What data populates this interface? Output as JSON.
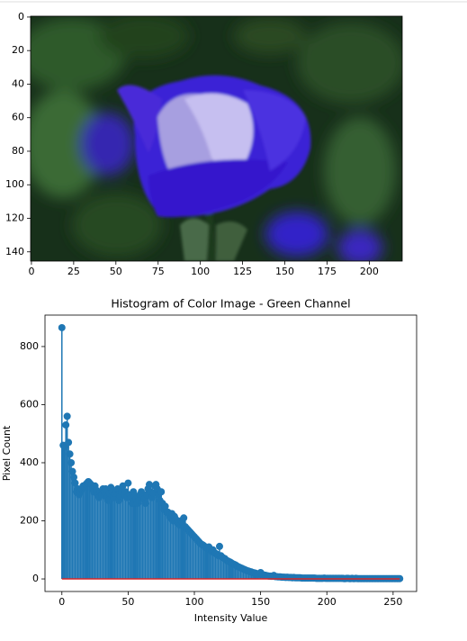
{
  "chart_data": [
    {
      "type": "image",
      "xlim": [
        -0.5,
        219.5
      ],
      "ylim": [
        145.5,
        -0.5
      ],
      "xticks": [
        0,
        25,
        50,
        75,
        100,
        125,
        150,
        175,
        200
      ],
      "yticks": [
        0,
        20,
        40,
        60,
        80,
        100,
        120,
        140
      ]
    },
    {
      "type": "stem",
      "title": "Histogram of Color Image - Green Channel",
      "xlabel": "Intensity Value",
      "ylabel": "Pixel Count",
      "color": "#1f77b4",
      "baseline_color": "#d62728",
      "xlim": [
        -12.75,
        267.75
      ],
      "ylim": [
        -43.25,
        908.25
      ],
      "xticks": [
        0,
        50,
        100,
        150,
        200,
        250
      ],
      "yticks": [
        0,
        200,
        400,
        600,
        800
      ],
      "x": [
        0,
        1,
        2,
        3,
        4,
        5,
        6,
        7,
        8,
        9,
        10,
        11,
        12,
        13,
        14,
        15,
        16,
        17,
        18,
        19,
        20,
        21,
        22,
        23,
        24,
        25,
        26,
        27,
        28,
        29,
        30,
        31,
        32,
        33,
        34,
        35,
        36,
        37,
        38,
        39,
        40,
        41,
        42,
        43,
        44,
        45,
        46,
        47,
        48,
        49,
        50,
        51,
        52,
        53,
        54,
        55,
        56,
        57,
        58,
        59,
        60,
        61,
        62,
        63,
        64,
        65,
        66,
        67,
        68,
        69,
        70,
        71,
        72,
        73,
        74,
        75,
        76,
        77,
        78,
        79,
        80,
        81,
        82,
        83,
        84,
        85,
        86,
        87,
        88,
        89,
        90,
        91,
        92,
        93,
        94,
        95,
        96,
        97,
        98,
        99,
        100,
        101,
        102,
        103,
        104,
        105,
        106,
        107,
        108,
        109,
        110,
        111,
        112,
        113,
        114,
        115,
        116,
        117,
        118,
        119,
        120,
        121,
        122,
        123,
        124,
        125,
        126,
        127,
        128,
        129,
        130,
        131,
        132,
        133,
        134,
        135,
        136,
        137,
        138,
        139,
        140,
        141,
        142,
        143,
        144,
        145,
        146,
        147,
        148,
        149,
        150,
        151,
        152,
        153,
        154,
        155,
        156,
        157,
        158,
        159,
        160,
        161,
        162,
        163,
        164,
        165,
        166,
        167,
        168,
        169,
        170,
        171,
        172,
        173,
        174,
        175,
        176,
        177,
        178,
        179,
        180,
        181,
        182,
        183,
        184,
        185,
        186,
        187,
        188,
        189,
        190,
        191,
        192,
        193,
        194,
        195,
        196,
        197,
        198,
        199,
        200,
        201,
        202,
        203,
        204,
        205,
        206,
        207,
        208,
        209,
        210,
        211,
        212,
        213,
        214,
        215,
        216,
        217,
        218,
        219,
        220,
        221,
        222,
        223,
        224,
        225,
        226,
        227,
        228,
        229,
        230,
        231,
        232,
        233,
        234,
        235,
        236,
        237,
        238,
        239,
        240,
        241,
        242,
        243,
        244,
        245,
        246,
        247,
        248,
        249,
        250,
        251,
        252,
        253,
        254,
        255
      ],
      "values": [
        865,
        460,
        455,
        530,
        560,
        470,
        430,
        400,
        370,
        350,
        330,
        300,
        310,
        290,
        300,
        310,
        320,
        315,
        325,
        330,
        335,
        330,
        325,
        310,
        300,
        320,
        305,
        290,
        280,
        300,
        290,
        310,
        300,
        310,
        280,
        270,
        295,
        315,
        300,
        280,
        295,
        300,
        310,
        270,
        285,
        300,
        320,
        290,
        300,
        280,
        330,
        290,
        280,
        260,
        300,
        285,
        275,
        260,
        270,
        290,
        300,
        280,
        275,
        260,
        290,
        310,
        325,
        300,
        280,
        295,
        320,
        325,
        310,
        290,
        270,
        300,
        260,
        240,
        250,
        230,
        230,
        220,
        210,
        225,
        200,
        215,
        205,
        195,
        190,
        185,
        200,
        195,
        210,
        180,
        175,
        170,
        165,
        160,
        155,
        150,
        145,
        140,
        135,
        130,
        125,
        120,
        118,
        115,
        110,
        108,
        105,
        110,
        100,
        95,
        100,
        90,
        88,
        85,
        80,
        112,
        80,
        75,
        72,
        70,
        65,
        62,
        60,
        58,
        55,
        52,
        50,
        48,
        45,
        42,
        40,
        38,
        36,
        34,
        32,
        30,
        28,
        27,
        25,
        24,
        22,
        21,
        20,
        18,
        17,
        16,
        22,
        15,
        14,
        13,
        12,
        11,
        10,
        10,
        9,
        9,
        12,
        8,
        8,
        7,
        7,
        7,
        6,
        6,
        6,
        5,
        6,
        5,
        5,
        5,
        4,
        5,
        4,
        4,
        4,
        4,
        4,
        3,
        3,
        3,
        3,
        3,
        3,
        3,
        3,
        3,
        3,
        3,
        2,
        2,
        2,
        2,
        2,
        2,
        3,
        2,
        2,
        2,
        2,
        2,
        2,
        2,
        2,
        2,
        2,
        2,
        2,
        2,
        2,
        1,
        1,
        2,
        2,
        1,
        1,
        2,
        1,
        1,
        2,
        1,
        1,
        1,
        1,
        1,
        1,
        1,
        1,
        1,
        1,
        1,
        1,
        1,
        1,
        1,
        1,
        1,
        1,
        1,
        1,
        1,
        1,
        1,
        1,
        1,
        1,
        1,
        1,
        1,
        1,
        1,
        1,
        1
      ]
    }
  ]
}
